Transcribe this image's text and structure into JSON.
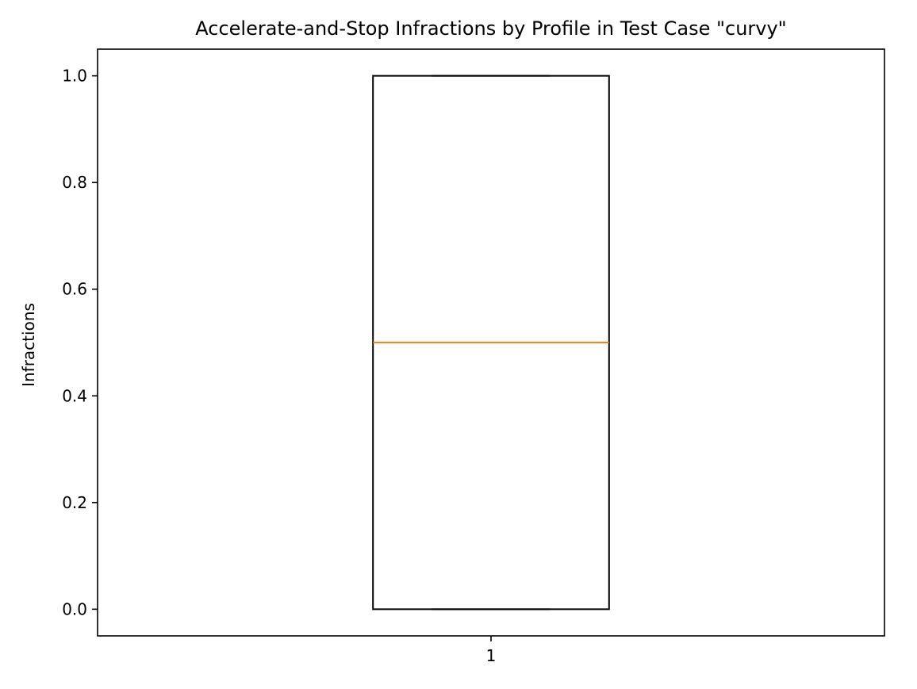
{
  "chart_data": {
    "type": "box",
    "title": "Accelerate-and-Stop Infractions by Profile in Test Case \"curvy\"",
    "xlabel": "",
    "ylabel": "Infractions",
    "categories": [
      "1"
    ],
    "boxes": [
      {
        "category": "1",
        "whisker_low": 0.0,
        "q1": 0.0,
        "median": 0.5,
        "q3": 1.0,
        "whisker_high": 1.0
      }
    ],
    "ylim": [
      -0.05,
      1.05
    ],
    "yticks": [
      0.0,
      0.2,
      0.4,
      0.6,
      0.8,
      1.0
    ],
    "ytick_labels": [
      "0.0",
      "0.2",
      "0.4",
      "0.6",
      "0.8",
      "1.0"
    ],
    "grid": false,
    "colors": {
      "box": "#000000",
      "median": "#ff7f0e",
      "frame": "#000000"
    }
  }
}
